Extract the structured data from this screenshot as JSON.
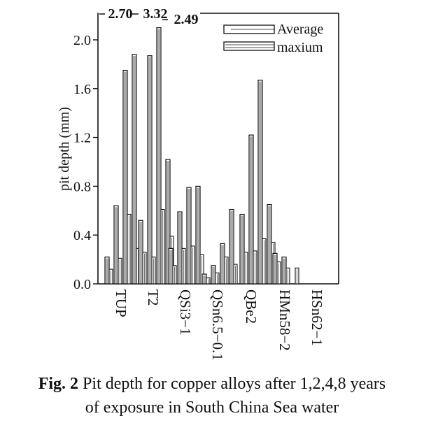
{
  "chart_data": {
    "type": "bar",
    "ylabel": "pit depth (mm)",
    "ylim": [
      0.0,
      2.2
    ],
    "yticks": [
      "0.0",
      "0.4",
      "0.8",
      "1.2",
      "1.6",
      "2.0"
    ],
    "categories": [
      "TUP",
      "T2",
      "QSi3−1",
      "QSn6.5−0.1",
      "QBe2",
      "HMn58−2",
      "HSn62−1"
    ],
    "groups": [
      {
        "average": [
          0.12,
          0.21,
          0.57,
          0.29
        ],
        "maximum": [
          0.22,
          0.64,
          1.75,
          1.88
        ]
      },
      {
        "average": [
          0.26,
          0.22,
          0.61,
          0.39
        ],
        "maximum": [
          0.52,
          1.87,
          2.1,
          1.02
        ]
      },
      {
        "average": [
          0.15,
          0.29,
          0.31,
          0.24
        ],
        "maximum": [
          0.29,
          0.59,
          0.79,
          0.8
        ]
      },
      {
        "average": [
          0.05,
          0.09,
          0.22,
          0.16
        ],
        "maximum": [
          0.08,
          0.15,
          0.33,
          0.61
        ]
      },
      {
        "average": [
          0.26,
          0.27,
          0.37,
          0.34
        ],
        "maximum": [
          0.57,
          1.22,
          1.67,
          0.65
        ]
      },
      {
        "average": [
          0.18,
          0.13,
          0.13,
          0.0
        ],
        "maximum": [
          0.25,
          0.22,
          0.0,
          0.0
        ]
      },
      {
        "average": [
          0.0,
          0.0,
          0.0,
          0.0
        ],
        "maximum": [
          0.0,
          0.0,
          0.0,
          0.0
        ]
      }
    ],
    "offscale_labels": [
      "2.70",
      "3.32",
      "2.49"
    ],
    "legend": {
      "entries": [
        "Average",
        "maxium"
      ],
      "position": "top-right"
    }
  },
  "caption": {
    "prefix": "Fig. 2",
    "line1": "Pit depth for copper alloys after 1,2,4,8 years",
    "line2": "of exposure in South China Sea water"
  }
}
